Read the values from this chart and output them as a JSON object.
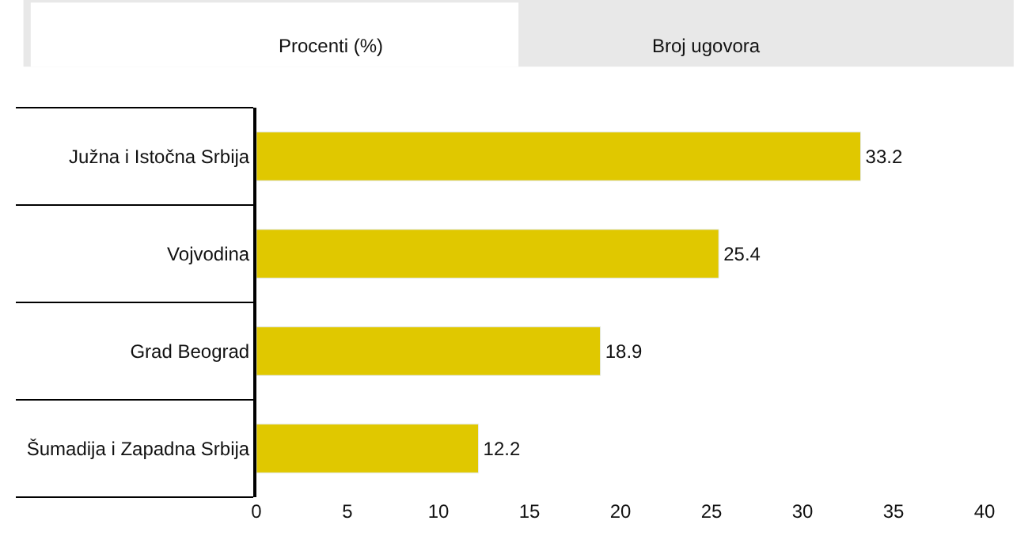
{
  "chart_data": {
    "type": "bar",
    "orientation": "horizontal",
    "categories": [
      "Južna i Istočna Srbija",
      "Vojvodina",
      "Grad Beograd",
      "Šumadija i Zapadna Srbija"
    ],
    "values": [
      33.2,
      25.4,
      18.9,
      12.2
    ],
    "color": "#e0c800",
    "data_labels": true,
    "xlim": [
      0,
      40
    ],
    "xticks": [
      0,
      5,
      10,
      15,
      20,
      25,
      30,
      35,
      40
    ],
    "legend": false,
    "annotations": [
      "Procenti (%)",
      "Broj ugovora"
    ]
  }
}
